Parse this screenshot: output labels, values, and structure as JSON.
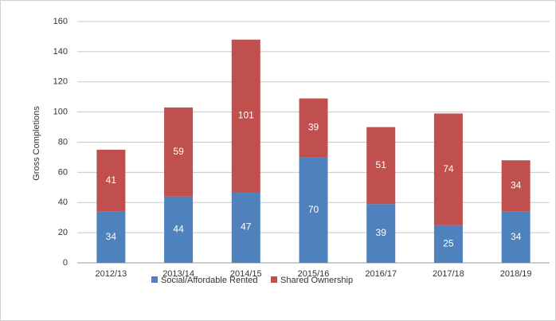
{
  "chart_data": {
    "type": "stacked_bar",
    "y_label": "Gross Completions",
    "categories": [
      "2012/13",
      "2013/14",
      "2014/15",
      "2015/16",
      "2016/17",
      "2017/18",
      "2018/19"
    ],
    "series": [
      {
        "name": "Social/Affordable Rented",
        "color": "#4f81bd",
        "values": [
          34,
          44,
          47,
          70,
          39,
          25,
          34
        ]
      },
      {
        "name": "Shared Ownership",
        "color": "#c0504d",
        "values": [
          41,
          59,
          101,
          39,
          51,
          74,
          34
        ]
      }
    ],
    "ylim": [
      0,
      160
    ],
    "yticks": [
      0,
      20,
      40,
      60,
      80,
      100,
      120,
      140,
      160
    ],
    "grid": true,
    "legend": "bottom"
  }
}
